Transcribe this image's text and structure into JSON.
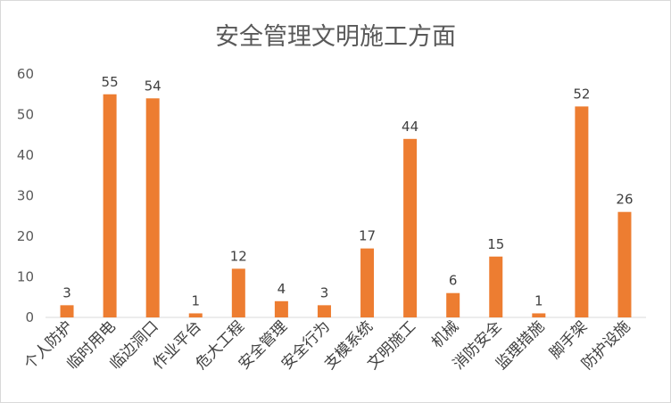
{
  "chart_data": {
    "type": "bar",
    "title": "安全管理文明施工方面",
    "categories": [
      "个人防护",
      "临时用电",
      "临边洞口",
      "作业平台",
      "危大工程",
      "安全管理",
      "安全行为",
      "支模系统",
      "文明施工",
      "机械",
      "消防安全",
      "监理措施",
      "脚手架",
      "防护设施"
    ],
    "values": [
      3,
      55,
      54,
      1,
      12,
      4,
      3,
      17,
      44,
      6,
      15,
      1,
      52,
      26
    ],
    "ylim": [
      0,
      60
    ],
    "yticks": [
      0,
      10,
      20,
      30,
      40,
      50,
      60
    ],
    "grid": false,
    "data_labels": true,
    "bar_color": "#ED7D31",
    "xlabel": "",
    "ylabel": ""
  }
}
